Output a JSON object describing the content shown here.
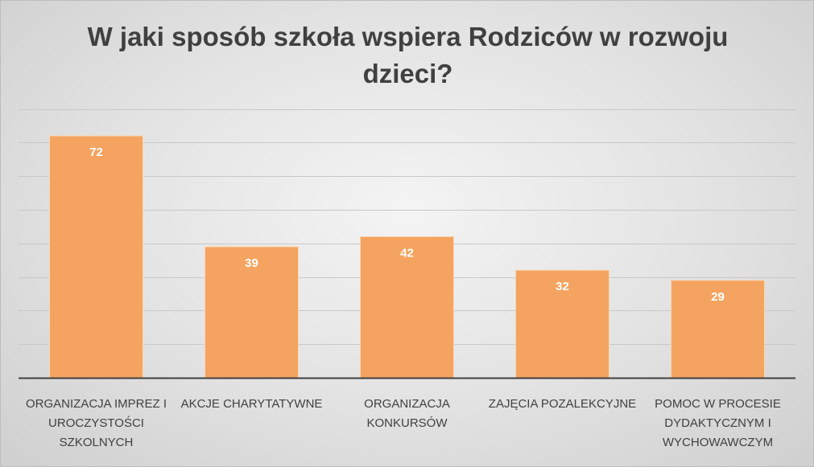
{
  "chart_data": {
    "type": "bar",
    "title_lines": [
      "W jaki sposób szkoła wspiera Rodziców w rozwoju",
      "dzieci?"
    ],
    "xlabel": "",
    "ylabel": "",
    "ylim": [
      0,
      80
    ],
    "grid": true,
    "legend": "none",
    "bar_color": "#f4a460",
    "categories": [
      {
        "lines": [
          "ORGANIZACJA IMPREZ I",
          "UROCZYSTOŚCI",
          "SZKOLNYCH"
        ]
      },
      {
        "lines": [
          "AKCJE CHARYTATYWNE"
        ]
      },
      {
        "lines": [
          "ORGANIZACJA",
          "KONKURSÓW"
        ]
      },
      {
        "lines": [
          "ZAJĘCIA POZALEKCYJNE"
        ]
      },
      {
        "lines": [
          "POMOC W PROCESIE",
          "DYDAKTYCZNYM I",
          "WYCHOWAWCZYM"
        ]
      }
    ],
    "values": [
      72,
      39,
      42,
      32,
      29
    ]
  }
}
